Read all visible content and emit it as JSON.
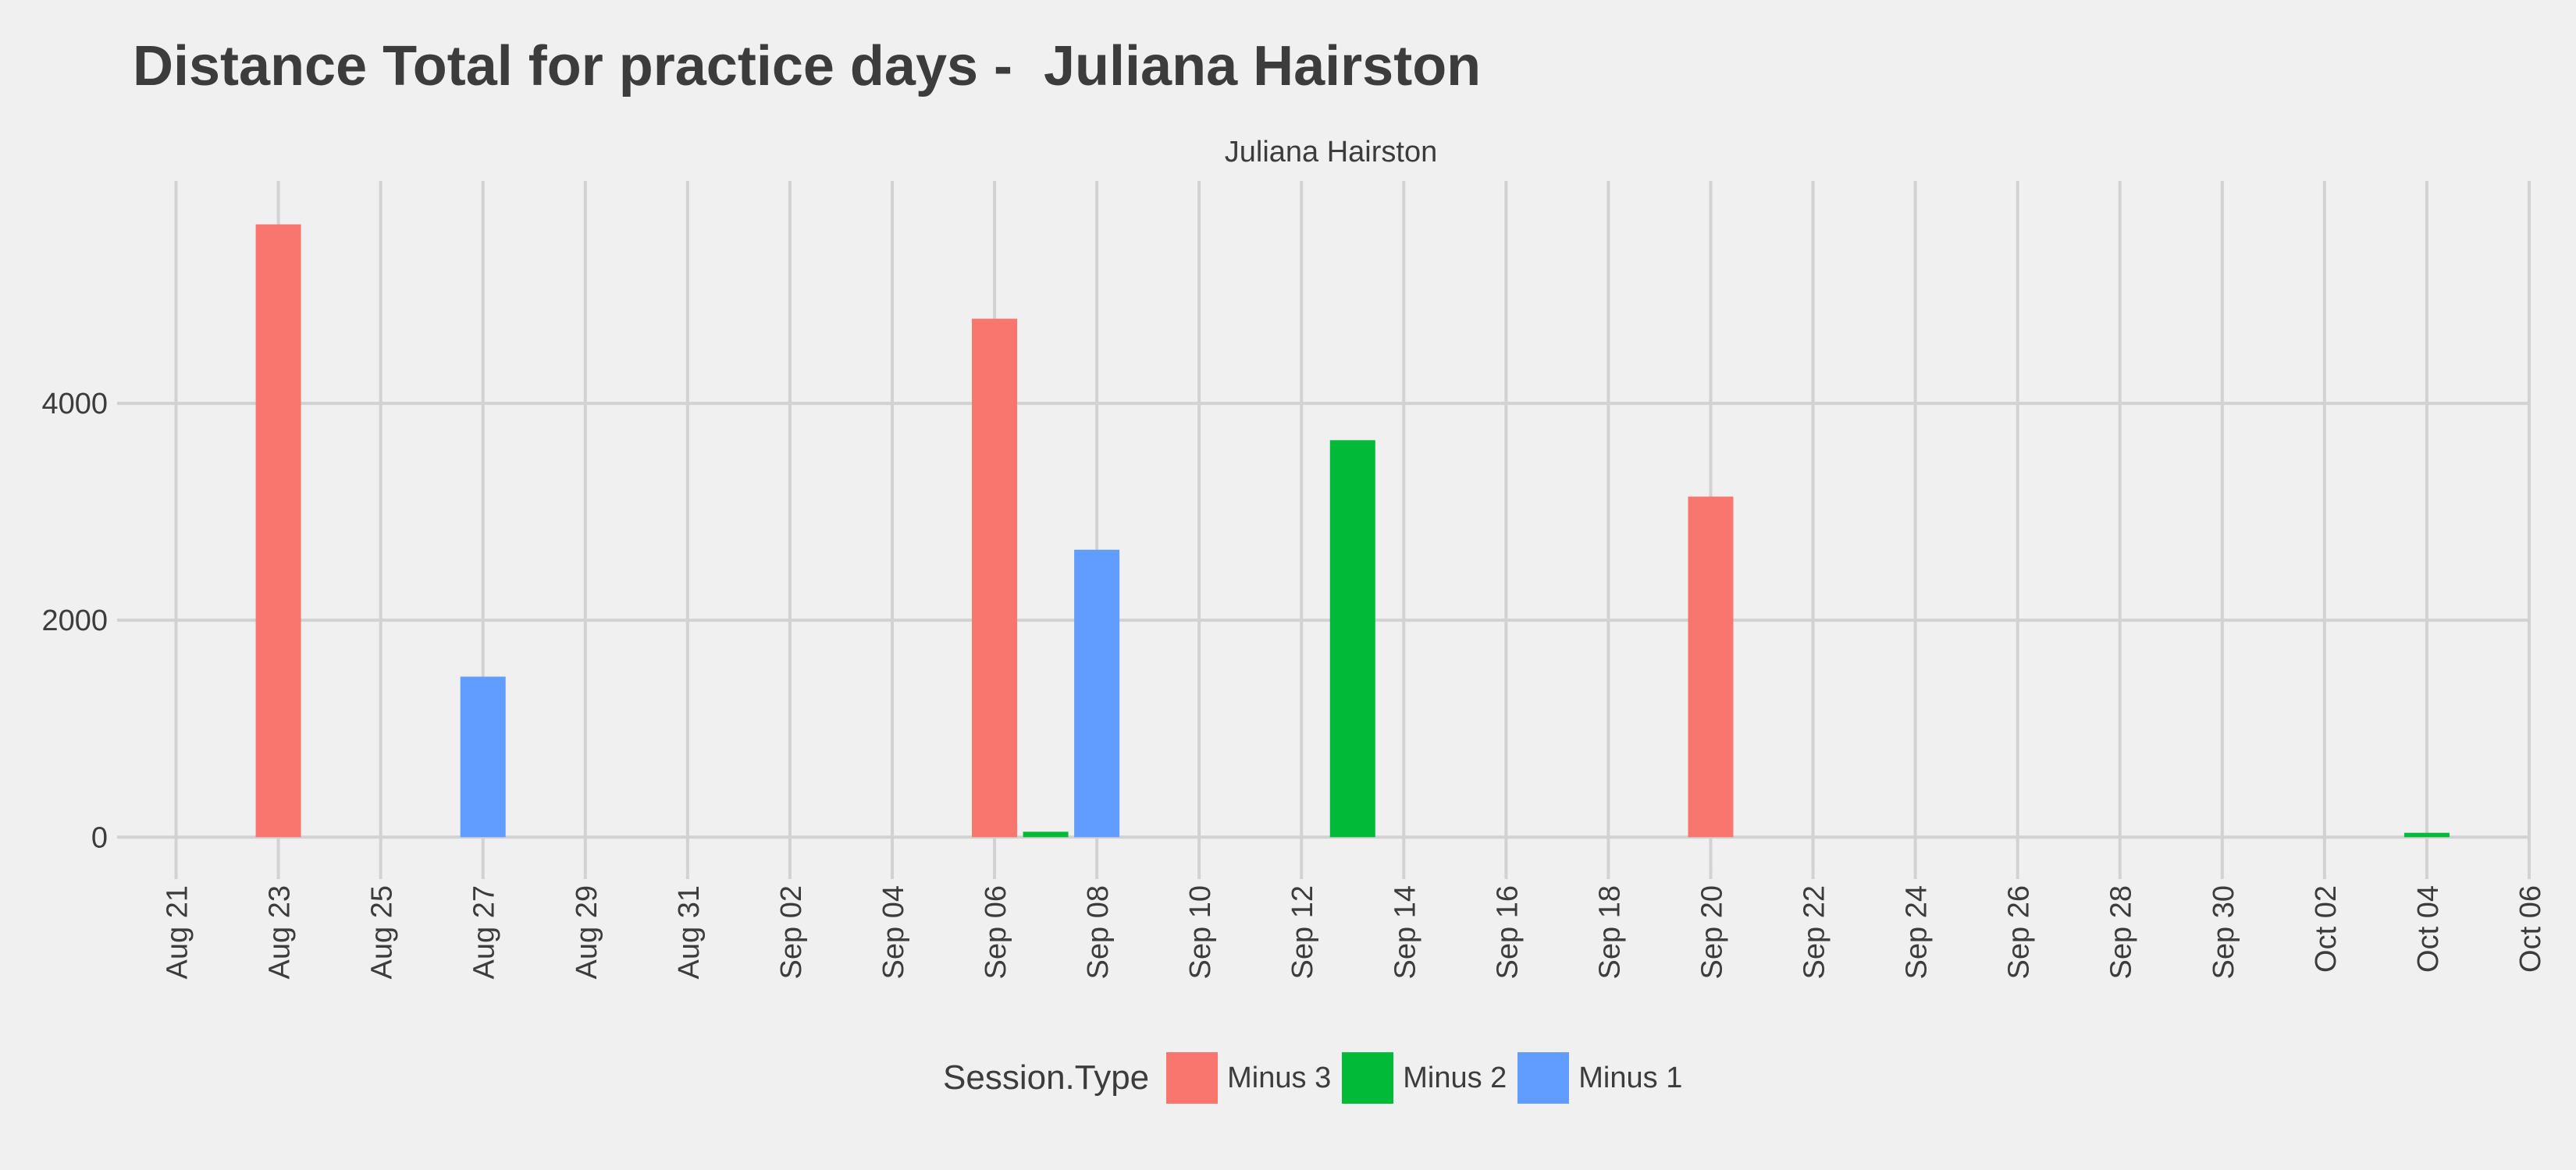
{
  "title": "Distance Total for practice days -  Juliana Hairston",
  "chart_data": {
    "type": "bar",
    "title": "Distance Total for practice days -  Juliana Hairston",
    "facet_label": "Juliana Hairston",
    "xlabel": "",
    "ylabel": "",
    "x_tick_labels": [
      "Aug 21",
      "Aug 23",
      "Aug 25",
      "Aug 27",
      "Aug 29",
      "Aug 31",
      "Sep 02",
      "Sep 04",
      "Sep 06",
      "Sep 08",
      "Sep 10",
      "Sep 12",
      "Sep 14",
      "Sep 16",
      "Sep 18",
      "Sep 20",
      "Sep 22",
      "Sep 24",
      "Sep 26",
      "Sep 28",
      "Sep 30",
      "Oct 02",
      "Oct 04",
      "Oct 06"
    ],
    "x_tick_dates": [
      "2024-08-21",
      "2024-08-23",
      "2024-08-25",
      "2024-08-27",
      "2024-08-29",
      "2024-08-31",
      "2024-09-02",
      "2024-09-04",
      "2024-09-06",
      "2024-09-08",
      "2024-09-10",
      "2024-09-12",
      "2024-09-14",
      "2024-09-16",
      "2024-09-18",
      "2024-09-20",
      "2024-09-22",
      "2024-09-24",
      "2024-09-26",
      "2024-09-28",
      "2024-09-30",
      "2024-10-02",
      "2024-10-04",
      "2024-10-06"
    ],
    "y_ticks": [
      0,
      2000,
      4000
    ],
    "y_tick_labels": [
      "0",
      "2000",
      "4000"
    ],
    "ylim": [
      -300,
      6050
    ],
    "xlim": [
      "2024-08-20",
      "2024-10-06"
    ],
    "grid": true,
    "legend": {
      "title": "Session.Type",
      "placement": "bottom",
      "entries": [
        "Minus 3",
        "Minus 2",
        "Minus 1"
      ]
    },
    "series": [
      {
        "name": "Minus 3",
        "color": "#F8766D",
        "points": [
          {
            "x": "2024-08-23",
            "y": 5650
          },
          {
            "x": "2024-09-06",
            "y": 4780
          },
          {
            "x": "2024-09-20",
            "y": 3140
          }
        ]
      },
      {
        "name": "Minus 2",
        "color": "#00BA38",
        "points": [
          {
            "x": "2024-09-07",
            "y": 50
          },
          {
            "x": "2024-09-13",
            "y": 3660
          },
          {
            "x": "2024-10-04",
            "y": 40
          }
        ]
      },
      {
        "name": "Minus 1",
        "color": "#619CFF",
        "points": [
          {
            "x": "2024-08-27",
            "y": 1480
          },
          {
            "x": "2024-09-08",
            "y": 2650
          }
        ]
      }
    ]
  }
}
